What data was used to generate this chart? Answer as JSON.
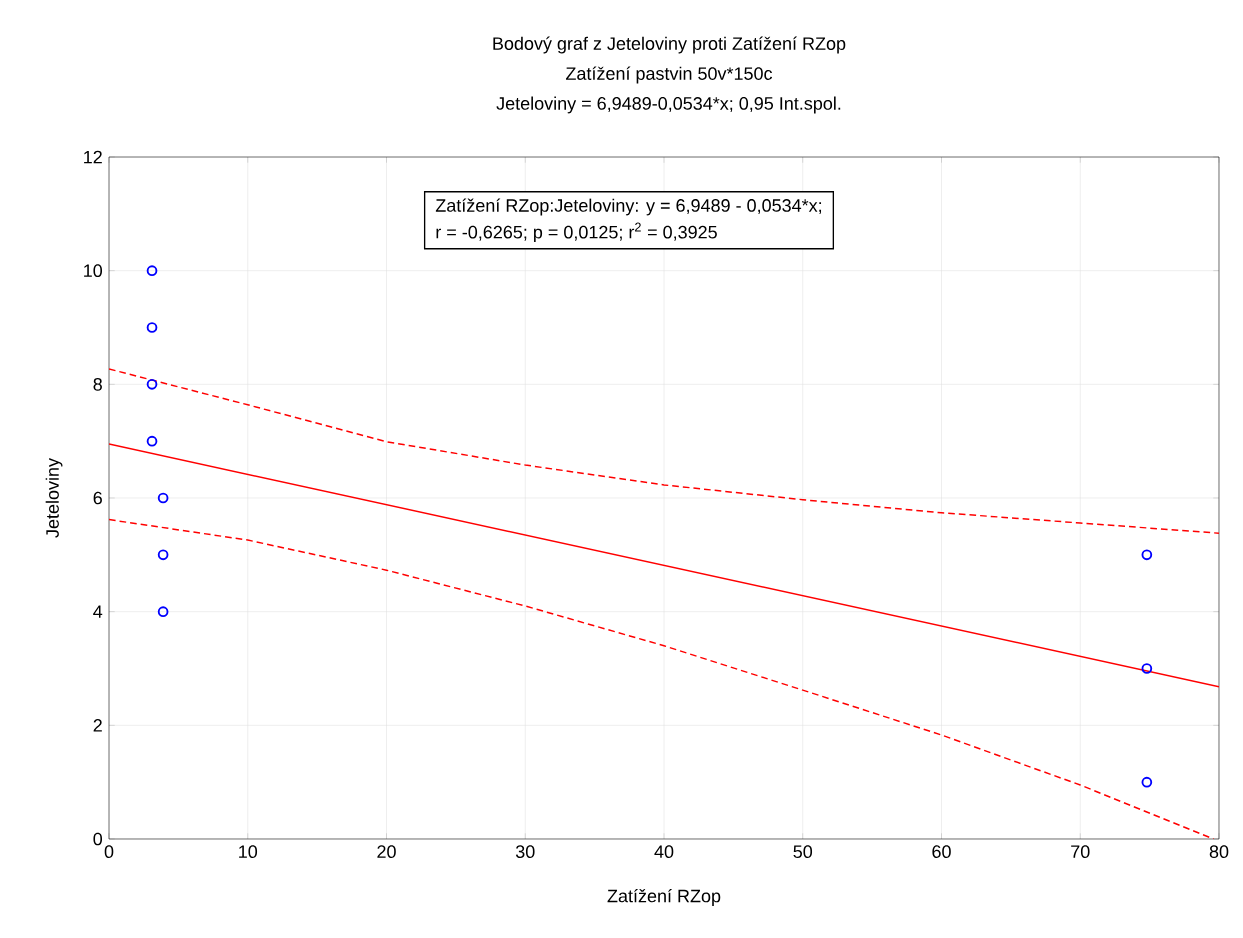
{
  "chart_data": {
    "type": "scatter",
    "title": "Bodový graf z Jeteloviny proti Zatížení RZop",
    "subtitle": "Zatížení pastvin 50v*150c",
    "xlabel": "Zatížení RZop",
    "ylabel": "Jeteloviny",
    "annotations": [
      "Jeteloviny = 6,9489-0,0534*x; 0,95 Int.spol.",
      "Zatížení RZop:Jeteloviny:   y = 6,9489 - 0,0534*x;",
      "r = -0,6265; p = 0,0125; r$^{2}$ = 0,3925"
    ],
    "xlim": [
      0,
      80
    ],
    "ylim": [
      0,
      12
    ],
    "xticks": [
      0,
      10,
      20,
      30,
      40,
      50,
      60,
      70,
      80
    ],
    "yticks": [
      0,
      2,
      4,
      6,
      8,
      10,
      12
    ],
    "grid": true,
    "series": [
      {
        "marker": "circle",
        "color": "#0000ff",
        "x": [
          3.1,
          3.1,
          3.1,
          3.1,
          3.9,
          3.9,
          3.9,
          74.8,
          74.8,
          74.8
        ],
        "values": [
          10,
          9,
          8,
          7,
          6,
          5,
          4,
          5,
          3,
          1
        ]
      },
      {
        "type": "line",
        "marker": "none",
        "color": "#ff0000",
        "line_style": "solid",
        "x": [
          0,
          80
        ],
        "values": [
          6.95,
          2.68
        ]
      },
      {
        "type": "line",
        "marker": "none",
        "color": "#ff0000",
        "line_style": "dashed",
        "x": [
          0,
          10,
          20,
          30,
          40,
          50,
          60,
          70,
          80
        ],
        "values": [
          8.27,
          7.64,
          6.99,
          6.58,
          6.23,
          5.97,
          5.74,
          5.56,
          5.38
        ]
      },
      {
        "type": "line",
        "marker": "none",
        "color": "#ff0000",
        "line_style": "dashed",
        "x": [
          0,
          10,
          20,
          30,
          40,
          50,
          60,
          70,
          79.6
        ],
        "values": [
          5.62,
          5.26,
          4.73,
          4.1,
          3.4,
          2.62,
          1.83,
          0.95,
          0
        ]
      }
    ]
  }
}
